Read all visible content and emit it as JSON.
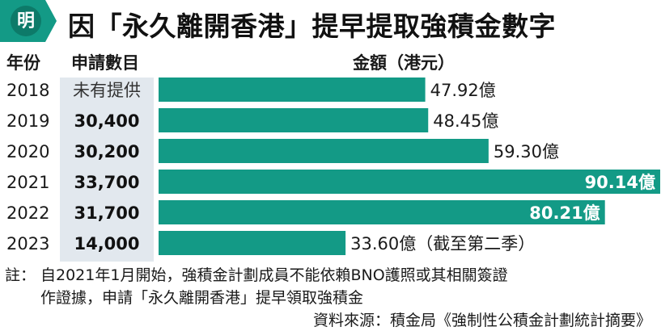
{
  "logo": {
    "text": "明"
  },
  "title": "因「永久離開香港」提早提取強積金數字",
  "headers": {
    "year": "年份",
    "count": "申請數目",
    "amount": "金額（港元）"
  },
  "chart_data": {
    "type": "bar",
    "orientation": "horizontal",
    "categories": [
      "2018",
      "2019",
      "2020",
      "2021",
      "2022",
      "2023"
    ],
    "applications": [
      "未有提供",
      "30,400",
      "30,200",
      "33,700",
      "31,700",
      "14,000"
    ],
    "values": [
      47.92,
      48.45,
      59.3,
      90.14,
      80.21,
      33.6
    ],
    "value_labels": [
      "47.92億",
      "48.45億",
      "59.30億",
      "90.14億",
      "80.21億",
      "33.60億（截至第二季）"
    ],
    "unit": "億港元",
    "xlim": [
      0,
      90.14
    ],
    "highlight": [
      false,
      false,
      false,
      true,
      true,
      false
    ],
    "colors": {
      "bar": "#139a86",
      "label_inside": "#ffffff",
      "label_outside": "#1a1a1a"
    },
    "grid": false
  },
  "notes": {
    "prefix": "註：",
    "line1": "自2021年1月開始，強積金計劃成員不能依賴BNO護照或其相關簽證",
    "line2": "作證據，申請「永久離開香港」提早領取強積金",
    "source": "資料來源：積金局《強制性公積金計劃統計摘要》"
  },
  "colors": {
    "brand": "#139a86",
    "column_bg": "#e2e8ee"
  }
}
